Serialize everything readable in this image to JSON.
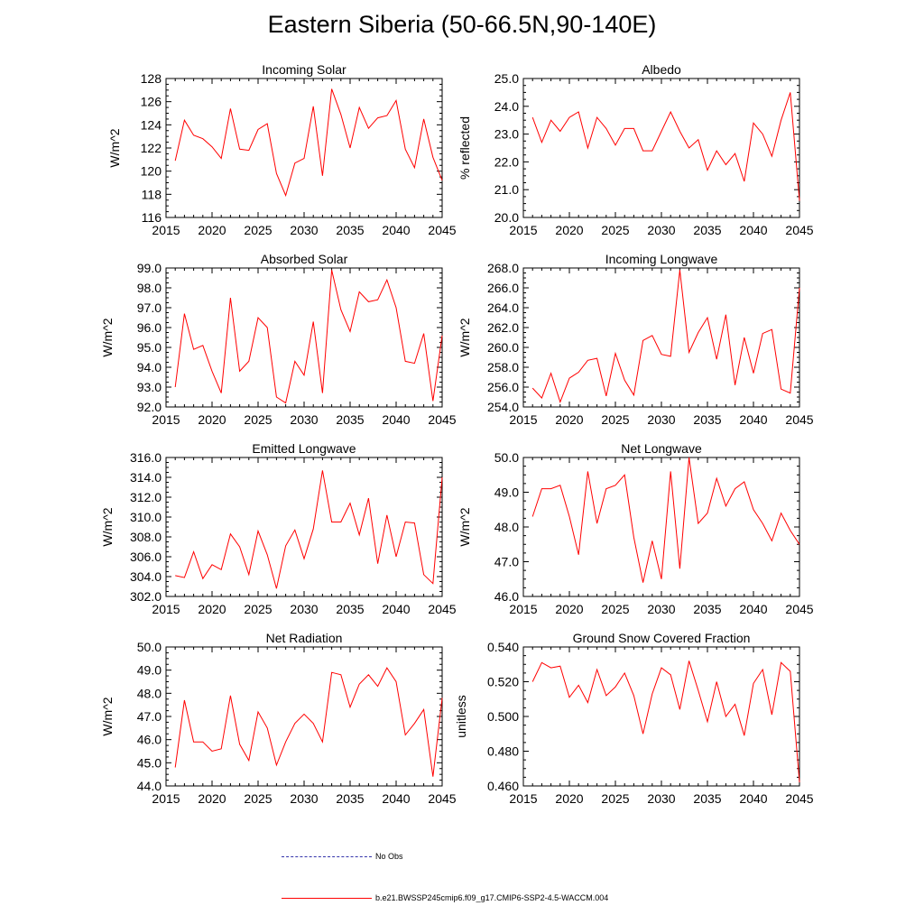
{
  "title": "Eastern Siberia (50-66.5N,90-140E)",
  "legend": {
    "obs_label": "No Obs",
    "model_label": "b.e21.BWSSP245cmip6.f09_g17.CMIP6-SSP2-4.5-WACCM.004",
    "obs_color": "#3333aa",
    "model_color": "#ff0000"
  },
  "chart_data": [
    {
      "type": "line",
      "title": "Incoming Solar",
      "ylabel": "W/m^2",
      "xlim": [
        2015,
        2045
      ],
      "ylim": [
        116,
        128
      ],
      "xticks": [
        2015,
        2020,
        2025,
        2030,
        2035,
        2040,
        2045
      ],
      "yticks": [
        116,
        118,
        120,
        122,
        124,
        126,
        128
      ],
      "ydecimals": 0,
      "x": [
        2016,
        2017,
        2018,
        2019,
        2020,
        2021,
        2022,
        2023,
        2024,
        2025,
        2026,
        2027,
        2028,
        2029,
        2030,
        2031,
        2032,
        2033,
        2034,
        2035,
        2036,
        2037,
        2038,
        2039,
        2040,
        2041,
        2042,
        2043,
        2044,
        2045
      ],
      "series": [
        {
          "name": "b.e21.BWSSP245cmip6.f09_g17.CMIP6-SSP2-4.5-WACCM.004",
          "values": [
            120.9,
            124.4,
            123.1,
            122.8,
            122.1,
            121.1,
            125.4,
            121.9,
            121.8,
            123.6,
            124.1,
            119.8,
            117.9,
            120.7,
            121.1,
            125.6,
            119.6,
            127.1,
            124.9,
            122.0,
            125.5,
            123.7,
            124.6,
            124.8,
            126.1,
            121.9,
            120.3,
            124.5,
            121.2,
            119.2
          ]
        }
      ]
    },
    {
      "type": "line",
      "title": "Albedo",
      "ylabel": "% reflected",
      "xlim": [
        2015,
        2045
      ],
      "ylim": [
        20.0,
        25.0
      ],
      "xticks": [
        2015,
        2020,
        2025,
        2030,
        2035,
        2040,
        2045
      ],
      "yticks": [
        20.0,
        21.0,
        22.0,
        23.0,
        24.0,
        25.0
      ],
      "ydecimals": 1,
      "x": [
        2016,
        2017,
        2018,
        2019,
        2020,
        2021,
        2022,
        2023,
        2024,
        2025,
        2026,
        2027,
        2028,
        2029,
        2030,
        2031,
        2032,
        2033,
        2034,
        2035,
        2036,
        2037,
        2038,
        2039,
        2040,
        2041,
        2042,
        2043,
        2044,
        2045
      ],
      "series": [
        {
          "name": "b.e21.BWSSP245cmip6.f09_g17.CMIP6-SSP2-4.5-WACCM.004",
          "values": [
            23.6,
            22.7,
            23.5,
            23.1,
            23.6,
            23.8,
            22.5,
            23.6,
            23.2,
            22.6,
            23.2,
            23.2,
            22.4,
            22.4,
            23.1,
            23.8,
            23.1,
            22.5,
            22.8,
            21.7,
            22.4,
            21.9,
            22.3,
            21.3,
            23.4,
            23.0,
            22.2,
            23.5,
            24.5,
            20.6
          ]
        }
      ]
    },
    {
      "type": "line",
      "title": "Absorbed Solar",
      "ylabel": "W/m^2",
      "xlim": [
        2015,
        2045
      ],
      "ylim": [
        92.0,
        99.0
      ],
      "xticks": [
        2015,
        2020,
        2025,
        2030,
        2035,
        2040,
        2045
      ],
      "yticks": [
        92.0,
        93.0,
        94.0,
        95.0,
        96.0,
        97.0,
        98.0,
        99.0
      ],
      "ydecimals": 1,
      "x": [
        2016,
        2017,
        2018,
        2019,
        2020,
        2021,
        2022,
        2023,
        2024,
        2025,
        2026,
        2027,
        2028,
        2029,
        2030,
        2031,
        2032,
        2033,
        2034,
        2035,
        2036,
        2037,
        2038,
        2039,
        2040,
        2041,
        2042,
        2043,
        2044,
        2045
      ],
      "series": [
        {
          "name": "b.e21.BWSSP245cmip6.f09_g17.CMIP6-SSP2-4.5-WACCM.004",
          "values": [
            93.0,
            96.7,
            94.9,
            95.1,
            93.8,
            92.7,
            97.5,
            93.8,
            94.3,
            96.5,
            96.0,
            92.5,
            92.2,
            94.3,
            93.6,
            96.3,
            92.7,
            98.9,
            96.9,
            95.8,
            97.8,
            97.3,
            97.4,
            98.4,
            97.0,
            94.3,
            94.2,
            95.7,
            92.3,
            95.6
          ]
        }
      ]
    },
    {
      "type": "line",
      "title": "Incoming Longwave",
      "ylabel": "W/m^2",
      "xlim": [
        2015,
        2045
      ],
      "ylim": [
        254.0,
        268.0
      ],
      "xticks": [
        2015,
        2020,
        2025,
        2030,
        2035,
        2040,
        2045
      ],
      "yticks": [
        254.0,
        256.0,
        258.0,
        260.0,
        262.0,
        264.0,
        266.0,
        268.0
      ],
      "ydecimals": 1,
      "x": [
        2016,
        2017,
        2018,
        2019,
        2020,
        2021,
        2022,
        2023,
        2024,
        2025,
        2026,
        2027,
        2028,
        2029,
        2030,
        2031,
        2032,
        2033,
        2034,
        2035,
        2036,
        2037,
        2038,
        2039,
        2040,
        2041,
        2042,
        2043,
        2044,
        2045
      ],
      "series": [
        {
          "name": "b.e21.BWSSP245cmip6.f09_g17.CMIP6-SSP2-4.5-WACCM.004",
          "values": [
            255.9,
            254.9,
            257.4,
            254.5,
            256.9,
            257.5,
            258.7,
            258.9,
            255.1,
            259.4,
            256.7,
            255.2,
            260.7,
            261.2,
            259.3,
            259.1,
            267.8,
            259.5,
            261.5,
            263.0,
            258.8,
            263.3,
            256.2,
            261.0,
            257.4,
            261.4,
            261.8,
            255.8,
            255.4,
            266.0
          ]
        }
      ]
    },
    {
      "type": "line",
      "title": "Emitted Longwave",
      "ylabel": "W/m^2",
      "xlim": [
        2015,
        2045
      ],
      "ylim": [
        302.0,
        316.0
      ],
      "xticks": [
        2015,
        2020,
        2025,
        2030,
        2035,
        2040,
        2045
      ],
      "yticks": [
        302.0,
        304.0,
        306.0,
        308.0,
        310.0,
        312.0,
        314.0,
        316.0
      ],
      "ydecimals": 1,
      "x": [
        2016,
        2017,
        2018,
        2019,
        2020,
        2021,
        2022,
        2023,
        2024,
        2025,
        2026,
        2027,
        2028,
        2029,
        2030,
        2031,
        2032,
        2033,
        2034,
        2035,
        2036,
        2037,
        2038,
        2039,
        2040,
        2041,
        2042,
        2043,
        2044,
        2045
      ],
      "series": [
        {
          "name": "b.e21.BWSSP245cmip6.f09_g17.CMIP6-SSP2-4.5-WACCM.004",
          "values": [
            304.1,
            303.9,
            306.5,
            303.8,
            305.2,
            304.7,
            308.3,
            307.0,
            304.2,
            308.6,
            306.2,
            302.8,
            307.1,
            308.7,
            305.8,
            308.8,
            314.7,
            309.5,
            309.5,
            311.4,
            308.2,
            311.9,
            305.3,
            310.2,
            306.0,
            309.5,
            309.4,
            304.2,
            303.3,
            314.0
          ]
        }
      ]
    },
    {
      "type": "line",
      "title": "Net Longwave",
      "ylabel": "W/m^2",
      "xlim": [
        2015,
        2045
      ],
      "ylim": [
        46.0,
        50.0
      ],
      "xticks": [
        2015,
        2020,
        2025,
        2030,
        2035,
        2040,
        2045
      ],
      "yticks": [
        46.0,
        47.0,
        48.0,
        49.0,
        50.0
      ],
      "ydecimals": 1,
      "x": [
        2016,
        2017,
        2018,
        2019,
        2020,
        2021,
        2022,
        2023,
        2024,
        2025,
        2026,
        2027,
        2028,
        2029,
        2030,
        2031,
        2032,
        2033,
        2034,
        2035,
        2036,
        2037,
        2038,
        2039,
        2040,
        2041,
        2042,
        2043,
        2044,
        2045
      ],
      "series": [
        {
          "name": "b.e21.BWSSP245cmip6.f09_g17.CMIP6-SSP2-4.5-WACCM.004",
          "values": [
            48.3,
            49.1,
            49.1,
            49.2,
            48.3,
            47.2,
            49.6,
            48.1,
            49.1,
            49.2,
            49.5,
            47.7,
            46.4,
            47.6,
            46.5,
            49.6,
            46.8,
            50.0,
            48.1,
            48.4,
            49.4,
            48.6,
            49.1,
            49.3,
            48.5,
            48.1,
            47.6,
            48.4,
            47.9,
            47.5
          ]
        }
      ]
    },
    {
      "type": "line",
      "title": "Net Radiation",
      "ylabel": "W/m^2",
      "xlim": [
        2015,
        2045
      ],
      "ylim": [
        44.0,
        50.0
      ],
      "xticks": [
        2015,
        2020,
        2025,
        2030,
        2035,
        2040,
        2045
      ],
      "yticks": [
        44.0,
        45.0,
        46.0,
        47.0,
        48.0,
        49.0,
        50.0
      ],
      "ydecimals": 1,
      "x": [
        2016,
        2017,
        2018,
        2019,
        2020,
        2021,
        2022,
        2023,
        2024,
        2025,
        2026,
        2027,
        2028,
        2029,
        2030,
        2031,
        2032,
        2033,
        2034,
        2035,
        2036,
        2037,
        2038,
        2039,
        2040,
        2041,
        2042,
        2043,
        2044,
        2045
      ],
      "series": [
        {
          "name": "b.e21.BWSSP245cmip6.f09_g17.CMIP6-SSP2-4.5-WACCM.004",
          "values": [
            44.8,
            47.7,
            45.9,
            45.9,
            45.5,
            45.6,
            47.9,
            45.8,
            45.1,
            47.2,
            46.5,
            44.9,
            45.9,
            46.7,
            47.1,
            46.7,
            45.9,
            48.9,
            48.8,
            47.4,
            48.4,
            48.8,
            48.3,
            49.1,
            48.5,
            46.2,
            46.7,
            47.3,
            44.4,
            47.8
          ]
        }
      ]
    },
    {
      "type": "line",
      "title": "Ground Snow Covered Fraction",
      "ylabel": "unitless",
      "xlim": [
        2015,
        2045
      ],
      "ylim": [
        0.46,
        0.54
      ],
      "xticks": [
        2015,
        2020,
        2025,
        2030,
        2035,
        2040,
        2045
      ],
      "yticks": [
        0.46,
        0.48,
        0.5,
        0.52,
        0.54
      ],
      "ydecimals": 3,
      "x": [
        2016,
        2017,
        2018,
        2019,
        2020,
        2021,
        2022,
        2023,
        2024,
        2025,
        2026,
        2027,
        2028,
        2029,
        2030,
        2031,
        2032,
        2033,
        2034,
        2035,
        2036,
        2037,
        2038,
        2039,
        2040,
        2041,
        2042,
        2043,
        2044,
        2045
      ],
      "series": [
        {
          "name": "b.e21.BWSSP245cmip6.f09_g17.CMIP6-SSP2-4.5-WACCM.004",
          "values": [
            0.52,
            0.531,
            0.528,
            0.529,
            0.511,
            0.518,
            0.508,
            0.527,
            0.512,
            0.517,
            0.525,
            0.512,
            0.49,
            0.513,
            0.528,
            0.524,
            0.504,
            0.532,
            0.515,
            0.497,
            0.52,
            0.5,
            0.507,
            0.489,
            0.519,
            0.527,
            0.501,
            0.531,
            0.526,
            0.462
          ]
        }
      ]
    }
  ]
}
